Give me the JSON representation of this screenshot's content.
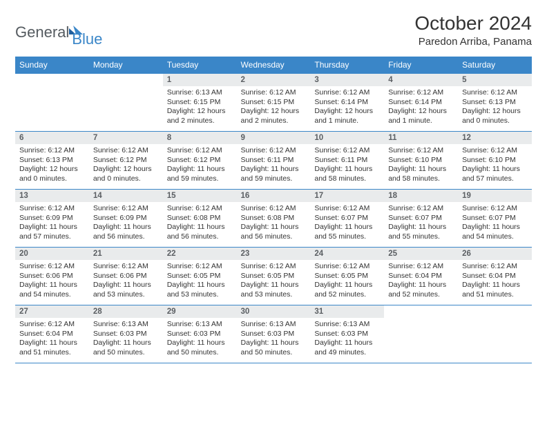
{
  "brand": {
    "part1": "General",
    "part2": "Blue"
  },
  "title": "October 2024",
  "location": "Paredon Arriba, Panama",
  "colors": {
    "header_bg": "#3a86c8",
    "header_text": "#ffffff",
    "daynum_bg": "#e9ebec",
    "daynum_text": "#5b5f63",
    "body_text": "#333333",
    "rule": "#3a86c8",
    "logo_gray": "#555b60",
    "logo_blue": "#3a86c8"
  },
  "typography": {
    "title_fontsize": 28,
    "location_fontsize": 15,
    "header_fontsize": 12,
    "daynum_fontsize": 11.5,
    "body_fontsize": 10.5
  },
  "weekdays": [
    "Sunday",
    "Monday",
    "Tuesday",
    "Wednesday",
    "Thursday",
    "Friday",
    "Saturday"
  ],
  "grid": [
    [
      {
        "empty": true
      },
      {
        "empty": true
      },
      {
        "num": "1",
        "sunrise": "Sunrise: 6:13 AM",
        "sunset": "Sunset: 6:15 PM",
        "daylight": "Daylight: 12 hours and 2 minutes."
      },
      {
        "num": "2",
        "sunrise": "Sunrise: 6:12 AM",
        "sunset": "Sunset: 6:15 PM",
        "daylight": "Daylight: 12 hours and 2 minutes."
      },
      {
        "num": "3",
        "sunrise": "Sunrise: 6:12 AM",
        "sunset": "Sunset: 6:14 PM",
        "daylight": "Daylight: 12 hours and 1 minute."
      },
      {
        "num": "4",
        "sunrise": "Sunrise: 6:12 AM",
        "sunset": "Sunset: 6:14 PM",
        "daylight": "Daylight: 12 hours and 1 minute."
      },
      {
        "num": "5",
        "sunrise": "Sunrise: 6:12 AM",
        "sunset": "Sunset: 6:13 PM",
        "daylight": "Daylight: 12 hours and 0 minutes."
      }
    ],
    [
      {
        "num": "6",
        "sunrise": "Sunrise: 6:12 AM",
        "sunset": "Sunset: 6:13 PM",
        "daylight": "Daylight: 12 hours and 0 minutes."
      },
      {
        "num": "7",
        "sunrise": "Sunrise: 6:12 AM",
        "sunset": "Sunset: 6:12 PM",
        "daylight": "Daylight: 12 hours and 0 minutes."
      },
      {
        "num": "8",
        "sunrise": "Sunrise: 6:12 AM",
        "sunset": "Sunset: 6:12 PM",
        "daylight": "Daylight: 11 hours and 59 minutes."
      },
      {
        "num": "9",
        "sunrise": "Sunrise: 6:12 AM",
        "sunset": "Sunset: 6:11 PM",
        "daylight": "Daylight: 11 hours and 59 minutes."
      },
      {
        "num": "10",
        "sunrise": "Sunrise: 6:12 AM",
        "sunset": "Sunset: 6:11 PM",
        "daylight": "Daylight: 11 hours and 58 minutes."
      },
      {
        "num": "11",
        "sunrise": "Sunrise: 6:12 AM",
        "sunset": "Sunset: 6:10 PM",
        "daylight": "Daylight: 11 hours and 58 minutes."
      },
      {
        "num": "12",
        "sunrise": "Sunrise: 6:12 AM",
        "sunset": "Sunset: 6:10 PM",
        "daylight": "Daylight: 11 hours and 57 minutes."
      }
    ],
    [
      {
        "num": "13",
        "sunrise": "Sunrise: 6:12 AM",
        "sunset": "Sunset: 6:09 PM",
        "daylight": "Daylight: 11 hours and 57 minutes."
      },
      {
        "num": "14",
        "sunrise": "Sunrise: 6:12 AM",
        "sunset": "Sunset: 6:09 PM",
        "daylight": "Daylight: 11 hours and 56 minutes."
      },
      {
        "num": "15",
        "sunrise": "Sunrise: 6:12 AM",
        "sunset": "Sunset: 6:08 PM",
        "daylight": "Daylight: 11 hours and 56 minutes."
      },
      {
        "num": "16",
        "sunrise": "Sunrise: 6:12 AM",
        "sunset": "Sunset: 6:08 PM",
        "daylight": "Daylight: 11 hours and 56 minutes."
      },
      {
        "num": "17",
        "sunrise": "Sunrise: 6:12 AM",
        "sunset": "Sunset: 6:07 PM",
        "daylight": "Daylight: 11 hours and 55 minutes."
      },
      {
        "num": "18",
        "sunrise": "Sunrise: 6:12 AM",
        "sunset": "Sunset: 6:07 PM",
        "daylight": "Daylight: 11 hours and 55 minutes."
      },
      {
        "num": "19",
        "sunrise": "Sunrise: 6:12 AM",
        "sunset": "Sunset: 6:07 PM",
        "daylight": "Daylight: 11 hours and 54 minutes."
      }
    ],
    [
      {
        "num": "20",
        "sunrise": "Sunrise: 6:12 AM",
        "sunset": "Sunset: 6:06 PM",
        "daylight": "Daylight: 11 hours and 54 minutes."
      },
      {
        "num": "21",
        "sunrise": "Sunrise: 6:12 AM",
        "sunset": "Sunset: 6:06 PM",
        "daylight": "Daylight: 11 hours and 53 minutes."
      },
      {
        "num": "22",
        "sunrise": "Sunrise: 6:12 AM",
        "sunset": "Sunset: 6:05 PM",
        "daylight": "Daylight: 11 hours and 53 minutes."
      },
      {
        "num": "23",
        "sunrise": "Sunrise: 6:12 AM",
        "sunset": "Sunset: 6:05 PM",
        "daylight": "Daylight: 11 hours and 53 minutes."
      },
      {
        "num": "24",
        "sunrise": "Sunrise: 6:12 AM",
        "sunset": "Sunset: 6:05 PM",
        "daylight": "Daylight: 11 hours and 52 minutes."
      },
      {
        "num": "25",
        "sunrise": "Sunrise: 6:12 AM",
        "sunset": "Sunset: 6:04 PM",
        "daylight": "Daylight: 11 hours and 52 minutes."
      },
      {
        "num": "26",
        "sunrise": "Sunrise: 6:12 AM",
        "sunset": "Sunset: 6:04 PM",
        "daylight": "Daylight: 11 hours and 51 minutes."
      }
    ],
    [
      {
        "num": "27",
        "sunrise": "Sunrise: 6:12 AM",
        "sunset": "Sunset: 6:04 PM",
        "daylight": "Daylight: 11 hours and 51 minutes."
      },
      {
        "num": "28",
        "sunrise": "Sunrise: 6:13 AM",
        "sunset": "Sunset: 6:03 PM",
        "daylight": "Daylight: 11 hours and 50 minutes."
      },
      {
        "num": "29",
        "sunrise": "Sunrise: 6:13 AM",
        "sunset": "Sunset: 6:03 PM",
        "daylight": "Daylight: 11 hours and 50 minutes."
      },
      {
        "num": "30",
        "sunrise": "Sunrise: 6:13 AM",
        "sunset": "Sunset: 6:03 PM",
        "daylight": "Daylight: 11 hours and 50 minutes."
      },
      {
        "num": "31",
        "sunrise": "Sunrise: 6:13 AM",
        "sunset": "Sunset: 6:03 PM",
        "daylight": "Daylight: 11 hours and 49 minutes."
      },
      {
        "empty": true
      },
      {
        "empty": true
      }
    ]
  ]
}
